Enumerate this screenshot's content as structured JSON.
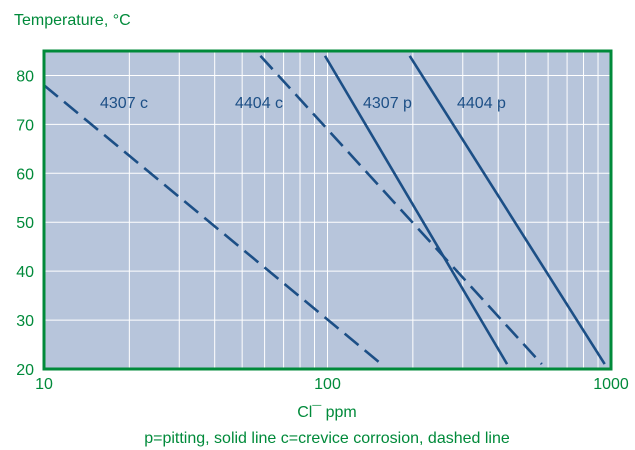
{
  "colors": {
    "accent": "#008a3a",
    "plot_background": "#b7c5db",
    "line": "#1c4f86",
    "grid": "#ffffff"
  },
  "chart_data": {
    "type": "line",
    "title": "Temperature, °C",
    "xlabel": "Cl¯ ppm",
    "ylabel": "Temperature, °C",
    "x_scale": "log",
    "xlim": [
      10,
      1000
    ],
    "ylim": [
      20,
      85
    ],
    "x_ticks": [
      10,
      100,
      1000
    ],
    "y_ticks": [
      20,
      30,
      40,
      50,
      60,
      70,
      80
    ],
    "grid": true,
    "annotation": "p=pitting, solid line   c=crevice corrosion, dashed line",
    "series": [
      {
        "name": "4307 c",
        "style": "dashed",
        "points": [
          {
            "x": 10,
            "y": 78
          },
          {
            "x": 155,
            "y": 21
          }
        ]
      },
      {
        "name": "4404 c",
        "style": "dashed",
        "points": [
          {
            "x": 58,
            "y": 84
          },
          {
            "x": 570,
            "y": 21
          }
        ]
      },
      {
        "name": "4307 p",
        "style": "solid",
        "points": [
          {
            "x": 98,
            "y": 84
          },
          {
            "x": 430,
            "y": 21
          }
        ]
      },
      {
        "name": "4404 p",
        "style": "solid",
        "points": [
          {
            "x": 195,
            "y": 84
          },
          {
            "x": 950,
            "y": 21
          }
        ]
      }
    ]
  }
}
